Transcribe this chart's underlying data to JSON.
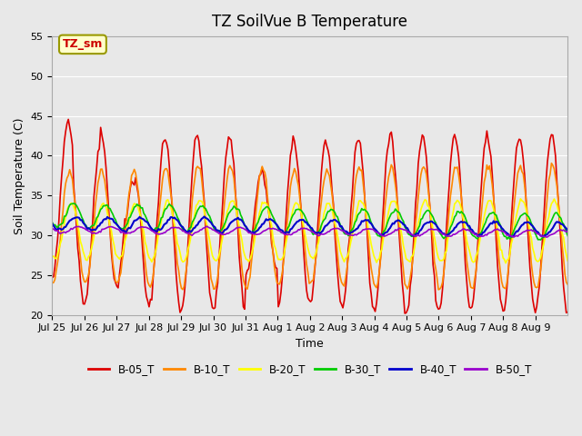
{
  "title": "TZ SoilVue B Temperature",
  "xlabel": "Time",
  "ylabel": "Soil Temperature (C)",
  "ylim": [
    20,
    55
  ],
  "yticks": [
    20,
    25,
    30,
    35,
    40,
    45,
    50,
    55
  ],
  "bg_color": "#e8e8e8",
  "legend_label": "TZ_sm",
  "legend_text_color": "#cc0000",
  "legend_box_color": "#ffffcc",
  "legend_box_edge": "#999900",
  "series_colors": {
    "B-05_T": "#dd0000",
    "B-10_T": "#ff8800",
    "B-20_T": "#ffff00",
    "B-30_T": "#00cc00",
    "B-40_T": "#0000cc",
    "B-50_T": "#9900cc"
  },
  "x_tick_labels": [
    "Jul 25",
    "Jul 26",
    "Jul 27",
    "Jul 28",
    "Jul 29",
    "Jul 30",
    "Jul 31",
    "Aug 1",
    "Aug 2",
    "Aug 3",
    "Aug 4",
    "Aug 5",
    "Aug 6",
    "Aug 7",
    "Aug 8",
    "Aug 9"
  ],
  "n_days": 16
}
